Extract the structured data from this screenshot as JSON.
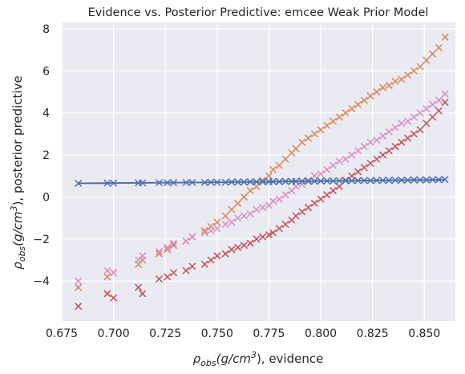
{
  "chart_data": {
    "type": "scatter",
    "title": "Evidence vs. Posterior Predictive: emcee Weak Prior Model",
    "xlabel": {
      "base": "ρ",
      "sub": "obs",
      "mid": "(g/cm",
      "sup": "3",
      "tail": "), evidence"
    },
    "ylabel": {
      "base": "ρ",
      "sub": "obs",
      "mid": "(g/cm",
      "sup": "3",
      "tail": "), posterior predictive"
    },
    "xlim": [
      0.675,
      0.865
    ],
    "ylim": [
      -5.9,
      8.3
    ],
    "xticks": [
      0.675,
      0.7,
      0.725,
      0.75,
      0.775,
      0.8,
      0.825,
      0.85
    ],
    "xtick_labels": [
      "0.675",
      "0.700",
      "0.725",
      "0.750",
      "0.775",
      "0.800",
      "0.825",
      "0.850"
    ],
    "yticks": [
      -4,
      -2,
      0,
      2,
      4,
      6,
      8
    ],
    "ytick_labels": [
      "−4",
      "−2",
      "0",
      "2",
      "4",
      "6",
      "8"
    ],
    "grid": true,
    "background": "#eaeaf2",
    "colors": {
      "blue": "#4c72b0",
      "orange": "#dd8452",
      "red": "#c44e52",
      "pink": "#da8bc3"
    },
    "x": [
      0.683,
      0.697,
      0.7,
      0.712,
      0.714,
      0.722,
      0.726,
      0.729,
      0.735,
      0.738,
      0.744,
      0.747,
      0.75,
      0.754,
      0.757,
      0.76,
      0.763,
      0.766,
      0.769,
      0.772,
      0.775,
      0.777,
      0.78,
      0.783,
      0.786,
      0.788,
      0.791,
      0.794,
      0.797,
      0.8,
      0.803,
      0.806,
      0.809,
      0.812,
      0.815,
      0.818,
      0.821,
      0.824,
      0.827,
      0.83,
      0.833,
      0.836,
      0.839,
      0.842,
      0.845,
      0.848,
      0.851,
      0.854,
      0.857,
      0.86
    ],
    "series": [
      {
        "color": "#4c72b0",
        "marker": "x",
        "line": true,
        "values": [
          0.65,
          0.66,
          0.66,
          0.67,
          0.67,
          0.68,
          0.68,
          0.68,
          0.69,
          0.69,
          0.69,
          0.7,
          0.7,
          0.7,
          0.71,
          0.71,
          0.71,
          0.72,
          0.72,
          0.72,
          0.73,
          0.73,
          0.73,
          0.74,
          0.74,
          0.74,
          0.75,
          0.75,
          0.75,
          0.76,
          0.76,
          0.76,
          0.77,
          0.77,
          0.77,
          0.78,
          0.78,
          0.78,
          0.79,
          0.79,
          0.79,
          0.8,
          0.8,
          0.8,
          0.81,
          0.81,
          0.81,
          0.82,
          0.82,
          0.83
        ]
      },
      {
        "color": "#dd8452",
        "marker": "x",
        "line": false,
        "values": [
          -4.3,
          -3.8,
          -3.6,
          -3.2,
          -3.0,
          -2.7,
          -2.5,
          -2.3,
          -2.1,
          -1.9,
          -1.6,
          -1.4,
          -1.2,
          -0.9,
          -0.6,
          -0.3,
          0.0,
          0.3,
          0.5,
          0.8,
          1.0,
          1.3,
          1.5,
          1.8,
          2.1,
          2.3,
          2.6,
          2.8,
          3.0,
          3.2,
          3.4,
          3.6,
          3.8,
          4.0,
          4.2,
          4.4,
          4.6,
          4.8,
          5.0,
          5.2,
          5.3,
          5.5,
          5.6,
          5.8,
          6.0,
          6.2,
          6.5,
          6.8,
          7.1,
          7.6
        ]
      },
      {
        "color": "#c44e52",
        "marker": "x",
        "line": false,
        "values": [
          -5.2,
          -4.6,
          -4.8,
          -4.3,
          -4.6,
          -3.9,
          -3.8,
          -3.6,
          -3.5,
          -3.3,
          -3.2,
          -3.0,
          -2.8,
          -2.7,
          -2.5,
          -2.4,
          -2.3,
          -2.2,
          -2.0,
          -1.9,
          -1.8,
          -1.7,
          -1.5,
          -1.3,
          -1.1,
          -0.9,
          -0.7,
          -0.5,
          -0.3,
          -0.1,
          0.1,
          0.3,
          0.5,
          0.8,
          1.0,
          1.2,
          1.4,
          1.6,
          1.8,
          2.0,
          2.2,
          2.4,
          2.6,
          2.8,
          3.0,
          3.2,
          3.5,
          3.8,
          4.1,
          4.5
        ]
      },
      {
        "color": "#da8bc3",
        "marker": "x",
        "line": false,
        "values": [
          -4.0,
          -3.5,
          -3.6,
          -3.0,
          -2.8,
          -2.6,
          -2.4,
          -2.2,
          -2.1,
          -1.9,
          -1.7,
          -1.6,
          -1.5,
          -1.3,
          -1.2,
          -1.0,
          -0.9,
          -0.8,
          -0.6,
          -0.5,
          -0.4,
          -0.2,
          -0.1,
          0.1,
          0.3,
          0.5,
          0.6,
          0.8,
          1.0,
          1.1,
          1.3,
          1.5,
          1.7,
          1.8,
          2.0,
          2.2,
          2.4,
          2.6,
          2.7,
          2.9,
          3.1,
          3.3,
          3.5,
          3.6,
          3.8,
          4.0,
          4.2,
          4.4,
          4.6,
          4.9
        ]
      }
    ]
  }
}
